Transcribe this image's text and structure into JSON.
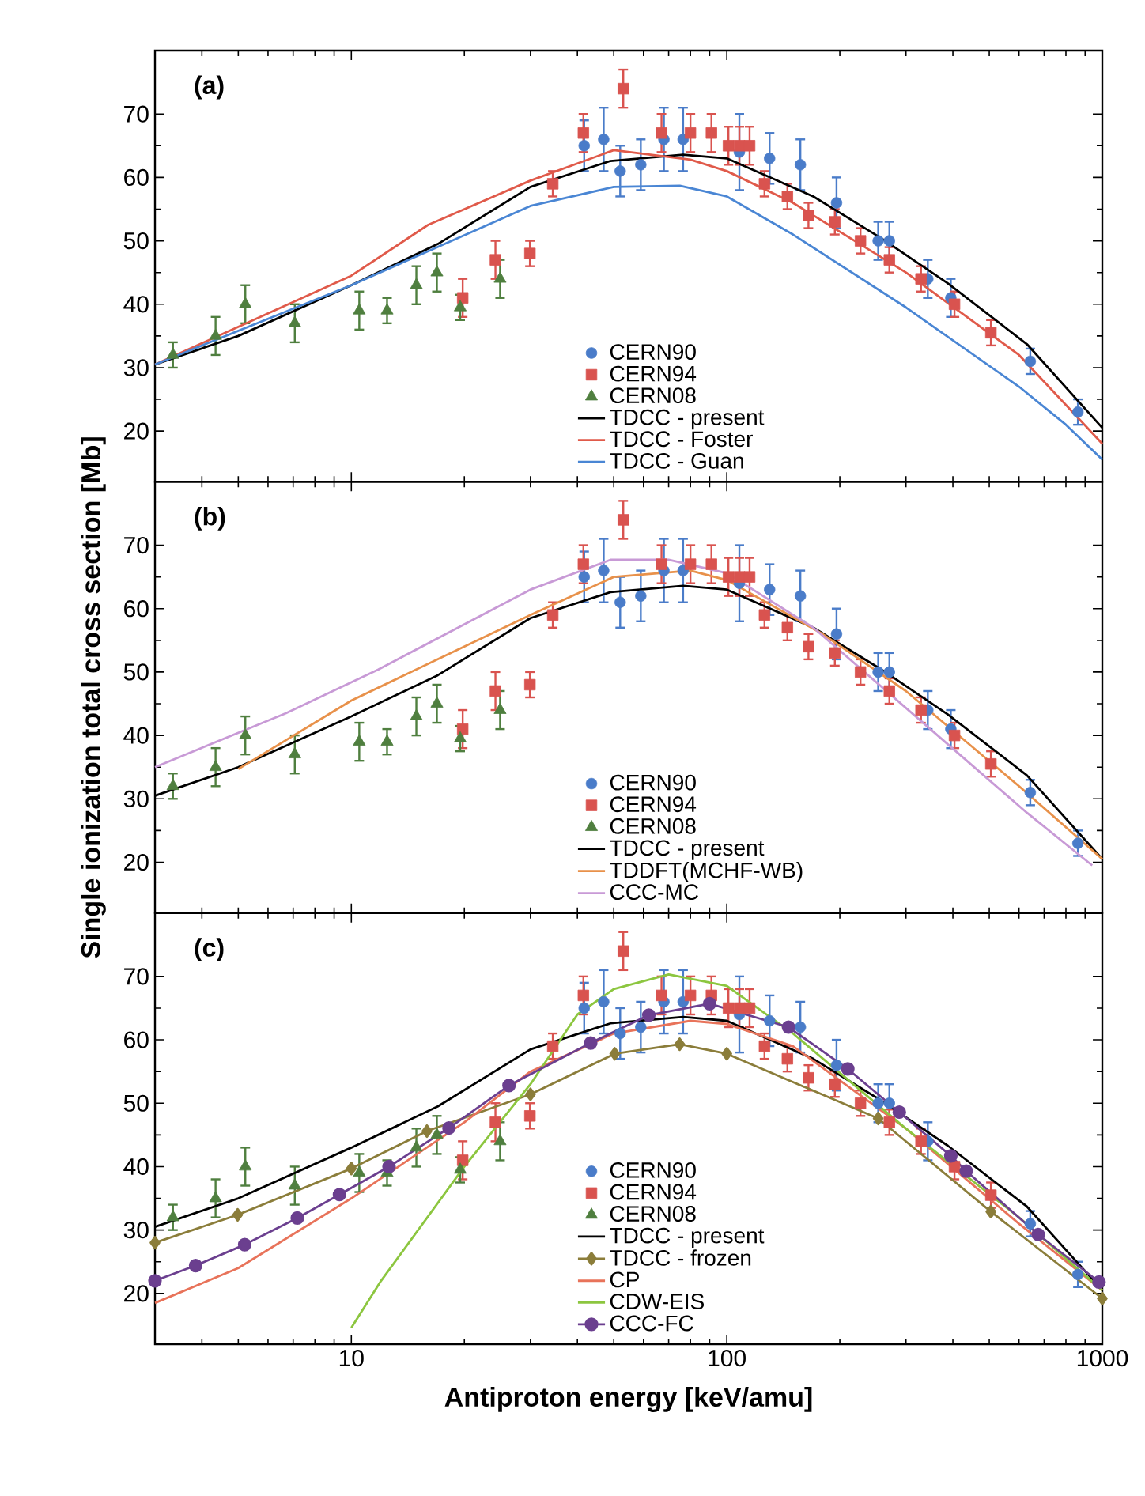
{
  "chart_data": [
    {
      "type": "line",
      "annotations": [
        "(a)"
      ],
      "xlim": [
        3,
        1000
      ],
      "ylim": [
        12,
        80
      ],
      "log": "x",
      "xticks": [
        10,
        100,
        1000
      ],
      "yticks": [
        20,
        30,
        40,
        50,
        60,
        70
      ],
      "tick_labels": "y",
      "legend": "bottom right",
      "series": [
        {
          "name": "CERN90",
          "type": "scatter",
          "marker": "circle",
          "color": "#4a7cc9",
          "x": [
            41.7,
            47,
            52,
            59,
            68,
            76.5,
            90,
            108,
            130,
            157,
            196,
            253,
            271,
            343,
            395,
            643,
            861
          ],
          "values": [
            65,
            66,
            61,
            62,
            66,
            66,
            null,
            64,
            63,
            62,
            56,
            50,
            50,
            44,
            41,
            31,
            23
          ],
          "errors": [
            4,
            5,
            4,
            4,
            5,
            5,
            null,
            6,
            4,
            4,
            4,
            3,
            3,
            3,
            3,
            2,
            2
          ]
        },
        {
          "name": "CERN94",
          "type": "scatter",
          "marker": "square",
          "color": "#d9534f",
          "x": [
            19.8,
            24.2,
            29.9,
            34.4,
            41.5,
            53,
            67,
            80,
            91,
            101,
            108,
            115,
            126,
            145,
            165,
            194,
            227,
            271,
            329,
            404,
            505
          ],
          "values": [
            41,
            47,
            48,
            59,
            67,
            74,
            67,
            67,
            67,
            65,
            65,
            65,
            59,
            57,
            54,
            53,
            50,
            47,
            44,
            40,
            35.5
          ],
          "errors": [
            3,
            3,
            2,
            2,
            3,
            3,
            3,
            3,
            3,
            3,
            3,
            3,
            2,
            2,
            2,
            2,
            2,
            2,
            2,
            2,
            2
          ]
        },
        {
          "name": "CERN08",
          "type": "scatter",
          "marker": "triangle",
          "color": "#4f7f3f",
          "x": [
            3.35,
            4.35,
            5.22,
            7.07,
            10.5,
            12.45,
            14.9,
            16.9,
            19.5,
            24.9
          ],
          "values": [
            32,
            35,
            40,
            37,
            39,
            39,
            43,
            45,
            39.5,
            44
          ],
          "errors": [
            2,
            3,
            3,
            3,
            3,
            2,
            3,
            3,
            2,
            3
          ]
        },
        {
          "name": "TDCC - present",
          "color": "#000000",
          "x": [
            3,
            5,
            10,
            17,
            30,
            49,
            76.5,
            100,
            170,
            258,
            388,
            630,
            1000
          ],
          "values": [
            30.5,
            35,
            43,
            49.5,
            58.5,
            62.6,
            63.6,
            63,
            57,
            50.4,
            43.3,
            33.7,
            20.5
          ]
        },
        {
          "name": "TDCC - Foster",
          "color": "#e05a4a",
          "x": [
            3,
            10,
            16,
            30,
            50,
            80,
            100,
            150,
            300,
            600,
            1000
          ],
          "values": [
            30.5,
            44.5,
            52.5,
            59.5,
            64.3,
            62.8,
            61,
            56,
            45,
            32,
            18
          ]
        },
        {
          "name": "TDCC - Guan",
          "color": "#4a86d4",
          "x": [
            3,
            10,
            30,
            50,
            75,
            100,
            150,
            300,
            600,
            800,
            1000
          ],
          "values": [
            30.5,
            43,
            55.5,
            58.5,
            58.7,
            57,
            51,
            39.5,
            27,
            21,
            15.5
          ]
        }
      ]
    },
    {
      "type": "line",
      "annotations": [
        "(b)"
      ],
      "ylabel": "Single ionization total cross section [Mb]",
      "xlim": [
        3,
        1000
      ],
      "ylim": [
        12,
        80
      ],
      "log": "x",
      "xticks": [
        10,
        100,
        1000
      ],
      "yticks": [
        20,
        30,
        40,
        50,
        60,
        70
      ],
      "tick_labels": "y",
      "legend": "bottom right",
      "series": [
        {
          "name": "CERN90",
          "type": "scatter",
          "marker": "circle",
          "color": "#4a7cc9",
          "x": [
            41.7,
            47,
            52,
            59,
            68,
            76.5,
            90,
            108,
            130,
            157,
            196,
            253,
            271,
            343,
            395,
            643,
            861
          ],
          "values": [
            65,
            66,
            61,
            62,
            66,
            66,
            null,
            64,
            63,
            62,
            56,
            50,
            50,
            44,
            41,
            31,
            23
          ],
          "errors": [
            4,
            5,
            4,
            4,
            5,
            5,
            null,
            6,
            4,
            4,
            4,
            3,
            3,
            3,
            3,
            2,
            2
          ]
        },
        {
          "name": "CERN94",
          "type": "scatter",
          "marker": "square",
          "color": "#d9534f",
          "x": [
            19.8,
            24.2,
            29.9,
            34.4,
            41.5,
            53,
            67,
            80,
            91,
            101,
            108,
            115,
            126,
            145,
            165,
            194,
            227,
            271,
            329,
            404,
            505
          ],
          "values": [
            41,
            47,
            48,
            59,
            67,
            74,
            67,
            67,
            67,
            65,
            65,
            65,
            59,
            57,
            54,
            53,
            50,
            47,
            44,
            40,
            35.5
          ],
          "errors": [
            3,
            3,
            2,
            2,
            3,
            3,
            3,
            3,
            3,
            3,
            3,
            3,
            2,
            2,
            2,
            2,
            2,
            2,
            2,
            2,
            2
          ]
        },
        {
          "name": "CERN08",
          "type": "scatter",
          "marker": "triangle",
          "color": "#4f7f3f",
          "x": [
            3.35,
            4.35,
            5.22,
            7.07,
            10.5,
            12.45,
            14.9,
            16.9,
            19.5,
            24.9
          ],
          "values": [
            32,
            35,
            40,
            37,
            39,
            39,
            43,
            45,
            39.5,
            44
          ],
          "errors": [
            2,
            3,
            3,
            3,
            3,
            2,
            3,
            3,
            2,
            3
          ]
        },
        {
          "name": "TDCC - present",
          "color": "#000000",
          "x": [
            3,
            5,
            10,
            17,
            30,
            49,
            76.5,
            100,
            170,
            258,
            388,
            630,
            1000
          ],
          "values": [
            30.5,
            35,
            43,
            49.5,
            58.5,
            62.6,
            63.6,
            63,
            57,
            50.4,
            43.3,
            33.7,
            20.5
          ]
        },
        {
          "name": "TDDFT(MCHF-WB)",
          "color": "#e8914a",
          "x": [
            5,
            10,
            30,
            50,
            80,
            100,
            180,
            300,
            600,
            1000
          ],
          "values": [
            34.7,
            45.5,
            59,
            65,
            66,
            64.5,
            56,
            47,
            32,
            20.5
          ]
        },
        {
          "name": "CCC-MC",
          "color": "#c89ad6",
          "x": [
            3,
            6.7,
            11.8,
            30,
            49,
            70,
            100,
            170,
            388,
            630,
            940
          ],
          "values": [
            35,
            43.5,
            50.4,
            63,
            67.7,
            67.7,
            65.6,
            57,
            38.6,
            27.8,
            19.5
          ]
        }
      ]
    },
    {
      "type": "line",
      "annotations": [
        "(c)"
      ],
      "xlabel": "Antiproton energy [keV/amu]",
      "xlim": [
        3,
        1000
      ],
      "ylim": [
        12,
        80
      ],
      "log": "x",
      "xticks": [
        10,
        100,
        1000
      ],
      "yticks": [
        20,
        30,
        40,
        50,
        60,
        70
      ],
      "legend": "bottom right",
      "series": [
        {
          "name": "CERN90",
          "type": "scatter",
          "marker": "circle",
          "color": "#4a7cc9",
          "x": [
            41.7,
            47,
            52,
            59,
            68,
            76.5,
            90,
            108,
            130,
            157,
            196,
            253,
            271,
            343,
            395,
            643,
            861
          ],
          "values": [
            65,
            66,
            61,
            62,
            66,
            66,
            null,
            64,
            63,
            62,
            56,
            50,
            50,
            44,
            null,
            31,
            23
          ],
          "errors": [
            4,
            5,
            4,
            4,
            5,
            5,
            null,
            6,
            4,
            4,
            4,
            3,
            3,
            3,
            null,
            2,
            2
          ]
        },
        {
          "name": "CERN94",
          "type": "scatter",
          "marker": "square",
          "color": "#d9534f",
          "x": [
            19.8,
            24.2,
            29.9,
            34.4,
            41.5,
            53,
            67,
            80,
            91,
            101,
            108,
            115,
            126,
            145,
            165,
            194,
            227,
            271,
            329,
            404,
            505
          ],
          "values": [
            41,
            47,
            48,
            59,
            67,
            74,
            67,
            67,
            67,
            65,
            65,
            65,
            59,
            57,
            54,
            53,
            50,
            47,
            44,
            40,
            35.5
          ],
          "errors": [
            3,
            3,
            2,
            2,
            3,
            3,
            3,
            3,
            3,
            3,
            3,
            3,
            2,
            2,
            2,
            2,
            2,
            2,
            2,
            2,
            2
          ]
        },
        {
          "name": "CERN08",
          "type": "scatter",
          "marker": "triangle",
          "color": "#4f7f3f",
          "x": [
            3.35,
            4.35,
            5.22,
            7.07,
            10.5,
            12.45,
            14.9,
            16.9,
            19.5,
            24.9
          ],
          "values": [
            32,
            35,
            40,
            37,
            39,
            39,
            43,
            45,
            39.5,
            44
          ],
          "errors": [
            2,
            3,
            3,
            3,
            3,
            2,
            3,
            3,
            2,
            3
          ]
        },
        {
          "name": "TDCC - present",
          "color": "#000000",
          "x": [
            3,
            5,
            10,
            17,
            30,
            49,
            76.5,
            100,
            170,
            258,
            388,
            630,
            1000
          ],
          "values": [
            30.5,
            35,
            43,
            49.5,
            58.5,
            62.6,
            63.6,
            63,
            57,
            50.4,
            43.3,
            33.7,
            20.5
          ]
        },
        {
          "name": "TDCC - frozen",
          "marker": "diamond",
          "color": "#8b7d3a",
          "x": [
            3,
            4.98,
            10,
            15.9,
            30,
            50.3,
            74.9,
            100,
            253,
            505,
            1000
          ],
          "values": [
            28,
            32.4,
            39.7,
            45.6,
            51.4,
            57.8,
            59.3,
            57.8,
            47.6,
            32.9,
            19.2
          ]
        },
        {
          "name": "CP",
          "color": "#e8735a",
          "x": [
            3,
            5,
            10,
            20,
            30,
            50,
            80,
            100,
            150,
            300,
            600,
            1000
          ],
          "values": [
            18.5,
            24,
            35,
            47,
            55,
            61,
            63,
            62.5,
            59,
            46,
            31,
            20.5
          ]
        },
        {
          "name": "CDW-EIS",
          "color": "#8cc63f",
          "x": [
            10,
            12,
            20,
            30,
            40,
            50,
            70,
            100,
            150,
            300,
            600,
            1000
          ],
          "values": [
            14.6,
            22,
            40,
            53,
            64,
            68,
            70.3,
            68.5,
            61,
            46,
            32,
            20.5
          ]
        },
        {
          "name": "CCC-FC",
          "marker": "circle",
          "color": "#6b3f8f",
          "x": [
            3,
            3.85,
            5.2,
            7.18,
            9.3,
            12.6,
            18.2,
            26.3,
            43.4,
            62,
            90,
            146,
            210,
            288,
            395,
            434,
            675,
            980
          ],
          "values": [
            22,
            24.4,
            27.7,
            31.9,
            35.6,
            40,
            46.1,
            52.8,
            59.5,
            63.9,
            65.7,
            62,
            55.4,
            48.6,
            41.7,
            39.3,
            29.3,
            21.8
          ]
        }
      ]
    }
  ]
}
